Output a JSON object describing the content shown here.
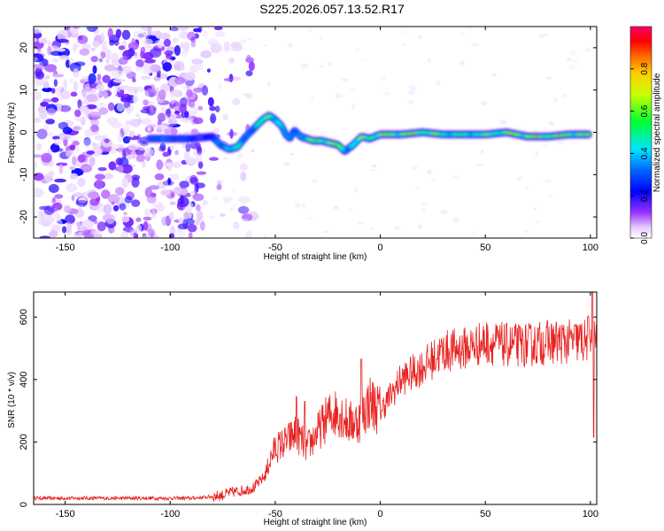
{
  "chart_data": [
    {
      "type": "heatmap",
      "title": "S225.2026.057.13.52.R17",
      "xlabel": "Height of straight line (km)",
      "ylabel": "Frequency (Hz)",
      "xlim": [
        -165,
        103
      ],
      "ylim": [
        -25,
        25
      ],
      "xticks": [
        -150,
        -100,
        -50,
        0,
        50,
        100
      ],
      "yticks": [
        -20,
        -10,
        0,
        10,
        20
      ],
      "colorbar": {
        "label": "Normalized spectral amplitude",
        "range": [
          0,
          1
        ],
        "ticks": [
          "0.0",
          "0.2",
          "0.4",
          "0.6",
          "0.8"
        ],
        "tick_values": [
          0.0,
          0.2,
          0.4,
          0.6,
          0.8
        ]
      },
      "ridge": {
        "x": [
          -110,
          -100,
          -90,
          -80,
          -76,
          -72,
          -68,
          -64,
          -60,
          -56,
          -53,
          -50,
          -47,
          -45,
          -43,
          -41,
          -38,
          -35,
          -32,
          -28,
          -24,
          -20,
          -17,
          -13,
          -9,
          -5,
          0,
          10,
          20,
          30,
          40,
          50,
          60,
          70,
          80,
          90,
          100
        ],
        "freq": [
          -1.5,
          -1.5,
          -1.5,
          -1.0,
          -3.0,
          -4.0,
          -3.5,
          -1.0,
          1.0,
          3.0,
          4.0,
          3.0,
          1.5,
          -0.5,
          -1.5,
          0.5,
          -1.0,
          -1.5,
          -2.0,
          -2.0,
          -2.5,
          -3.0,
          -4.5,
          -3.0,
          -1.0,
          -1.5,
          -0.5,
          -0.5,
          0.0,
          -0.5,
          -0.5,
          -0.5,
          0.0,
          -1.0,
          -1.0,
          -0.5,
          -0.5
        ],
        "amplitude": [
          0.35,
          0.35,
          0.3,
          0.25,
          0.45,
          0.55,
          0.5,
          0.4,
          0.45,
          0.6,
          0.8,
          0.7,
          0.5,
          0.4,
          0.35,
          0.4,
          0.5,
          0.55,
          0.75,
          0.85,
          0.9,
          0.75,
          0.5,
          0.6,
          0.75,
          0.8,
          0.85,
          0.85,
          0.9,
          0.7,
          0.65,
          0.7,
          0.85,
          0.9,
          0.9,
          0.85,
          0.8
        ]
      },
      "noise_region_x": [
        -165,
        -85
      ]
    },
    {
      "type": "line",
      "xlabel": "Height of straight line (km)",
      "ylabel": "SNR (10 * v/v)",
      "xlim": [
        -165,
        103
      ],
      "ylim": [
        0,
        680
      ],
      "xticks": [
        -150,
        -100,
        -50,
        0,
        50,
        100
      ],
      "yticks": [
        0,
        200,
        400,
        600
      ],
      "series": [
        {
          "name": "SNR",
          "color": "#e8201e",
          "x": [
            -165,
            -150,
            -130,
            -110,
            -90,
            -80,
            -75,
            -70,
            -65,
            -60,
            -55,
            -52,
            -50,
            -45,
            -40,
            -35,
            -30,
            -25,
            -20,
            -15,
            -10,
            -5,
            0,
            5,
            10,
            20,
            30,
            40,
            50,
            60,
            70,
            80,
            90,
            95,
            98,
            100,
            103
          ],
          "y": [
            20,
            20,
            20,
            20,
            20,
            25,
            30,
            40,
            45,
            55,
            90,
            150,
            180,
            200,
            230,
            180,
            230,
            280,
            300,
            260,
            270,
            330,
            300,
            350,
            400,
            440,
            490,
            500,
            520,
            510,
            510,
            520,
            520,
            525,
            520,
            560,
            530
          ]
        }
      ],
      "spikes": [
        {
          "x": -40,
          "y": 345
        },
        {
          "x": -36,
          "y": 330
        },
        {
          "x": -9,
          "y": 465
        },
        {
          "x": 101,
          "y": 680
        },
        {
          "x": 101.5,
          "y": 215
        }
      ]
    }
  ]
}
